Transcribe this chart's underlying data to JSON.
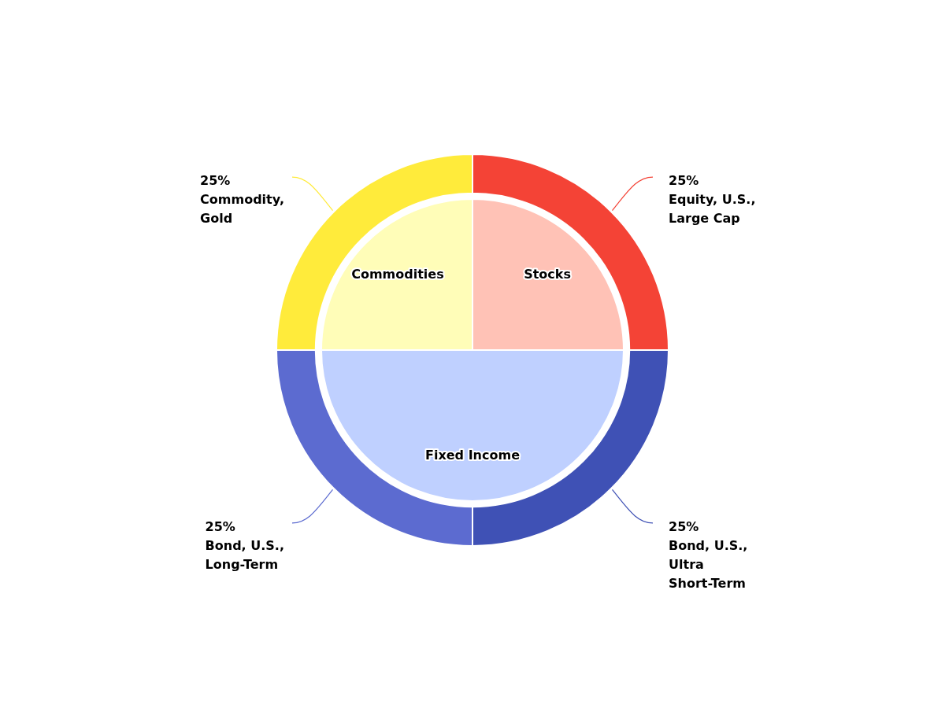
{
  "chart_data": [
    {
      "type": "pie",
      "categories": [
        "Stocks",
        "Fixed Income",
        "Commodities"
      ],
      "values": [
        25,
        50,
        25
      ],
      "colors": [
        "#ffc2b6",
        "#bfd0ff",
        "#fffdb8"
      ],
      "legend": false
    },
    {
      "type": "donut",
      "categories": [
        "Equity, U.S., Large Cap",
        "Bond, U.S., Ultra Short-Term",
        "Bond, U.S., Long-Term",
        "Commodity, Gold"
      ],
      "values": [
        25,
        25,
        25,
        25
      ],
      "colors": [
        "#f44336",
        "#3f51b5",
        "#5c6bd0",
        "#ffeb3b"
      ],
      "value_labels": [
        "25%",
        "25%",
        "25%",
        "25%"
      ],
      "legend": false
    }
  ]
}
